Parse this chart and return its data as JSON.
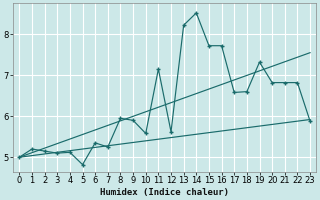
{
  "xlabel": "Humidex (Indice chaleur)",
  "bg_color": "#cce8e8",
  "grid_color": "#ffffff",
  "line_color": "#1a6b6b",
  "xlim": [
    -0.5,
    23.5
  ],
  "ylim": [
    4.65,
    8.75
  ],
  "xticks": [
    0,
    1,
    2,
    3,
    4,
    5,
    6,
    7,
    8,
    9,
    10,
    11,
    12,
    13,
    14,
    15,
    16,
    17,
    18,
    19,
    20,
    21,
    22,
    23
  ],
  "yticks": [
    5,
    6,
    7,
    8
  ],
  "line1_x": [
    0,
    1,
    2,
    3,
    4,
    5,
    6,
    7,
    8,
    9,
    10,
    11,
    12,
    13,
    14,
    15,
    16,
    17,
    18,
    19,
    20,
    21,
    22,
    23
  ],
  "line1_y": [
    5.0,
    5.2,
    5.15,
    5.1,
    5.12,
    4.82,
    5.35,
    5.25,
    5.95,
    5.9,
    5.58,
    7.15,
    5.62,
    8.22,
    8.52,
    7.72,
    7.72,
    6.58,
    6.6,
    7.32,
    6.82,
    6.82,
    6.82,
    5.88
  ],
  "line2_x": [
    0,
    23
  ],
  "line2_y": [
    5.0,
    7.55
  ],
  "line3_x": [
    0,
    23
  ],
  "line3_y": [
    5.0,
    5.92
  ]
}
